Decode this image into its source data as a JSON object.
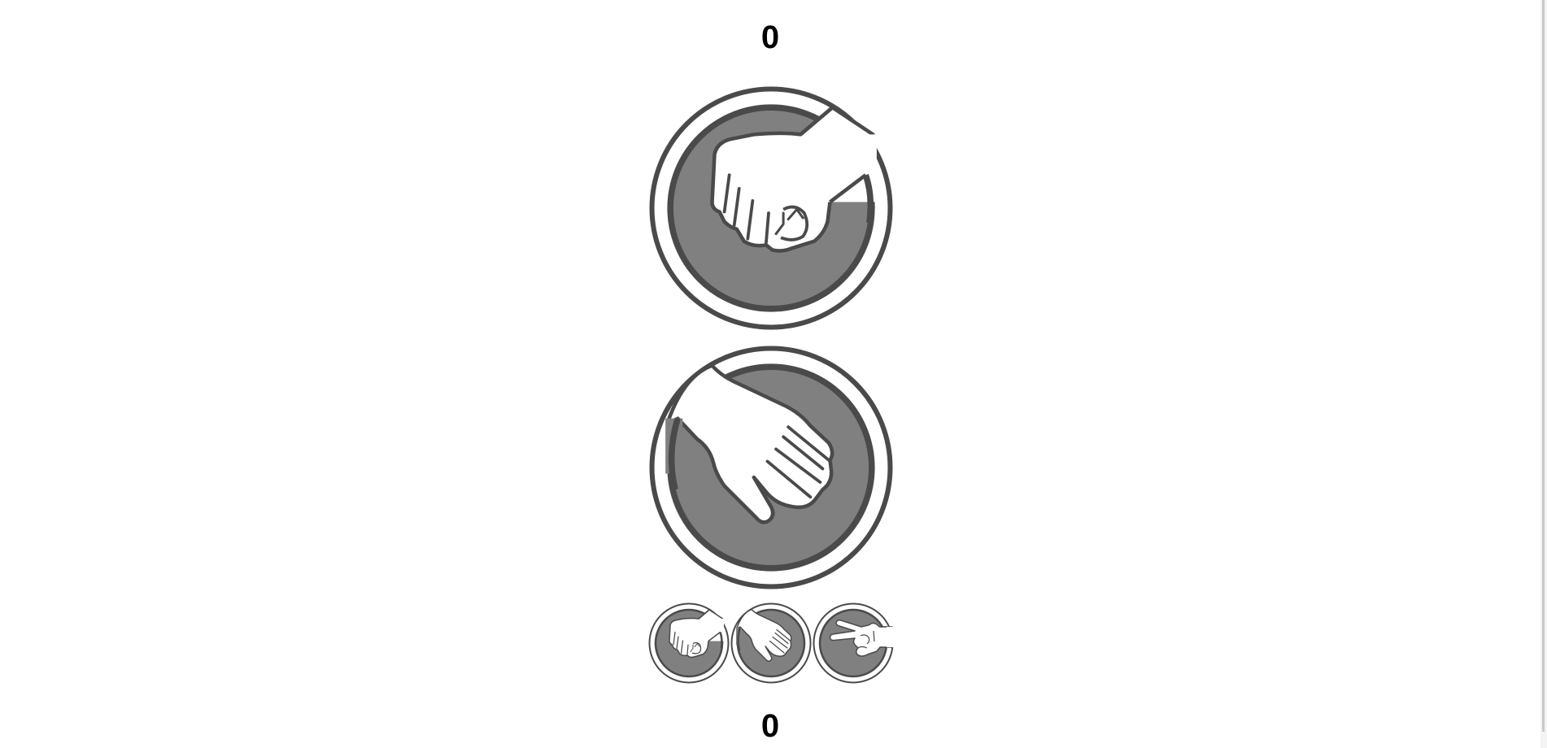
{
  "scores": {
    "computer": "0",
    "player": "0"
  },
  "board": {
    "computer_choice": "rock",
    "player_choice": "paper"
  },
  "picker": {
    "options": [
      {
        "id": "rock",
        "icon": "rock-fist-icon"
      },
      {
        "id": "paper",
        "icon": "paper-hand-icon"
      },
      {
        "id": "scissors",
        "icon": "scissors-hand-icon"
      }
    ]
  },
  "colors": {
    "ring": "#4a4a4a",
    "disc": "#808080",
    "hand_fill": "#ffffff",
    "background": "#ffffff",
    "score_text": "#000000"
  }
}
